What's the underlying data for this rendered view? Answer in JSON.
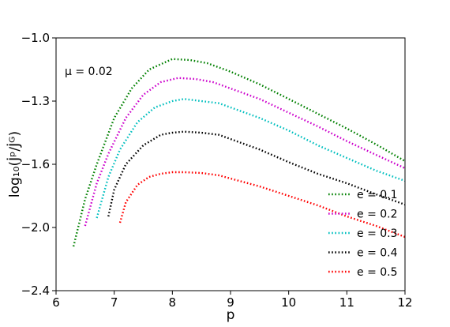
{
  "chart_data": {
    "type": "line",
    "title": "",
    "xlabel": "p",
    "ylabel": "log₁₀(J̇ᵖ/J̇ᴳ)",
    "xlim": [
      6,
      12
    ],
    "ylim": [
      -2.4,
      -1.0
    ],
    "xticks": [
      6,
      7,
      8,
      9,
      10,
      11,
      12
    ],
    "xtick_labels": [
      "6",
      "7",
      "8",
      "9",
      "10",
      "11",
      "12"
    ],
    "yticks": [
      -2.4,
      -2.0,
      -1.6,
      -1.3,
      -1.0
    ],
    "ytick_labels": [
      "−2.4",
      "−2.0",
      "−1.6",
      "−1.3",
      "−1.0"
    ],
    "annotation": "μ = 0.02",
    "legend_position": "lower-right",
    "grid": false,
    "line_style": "dotted",
    "series": [
      {
        "name": "e = 0.1",
        "color": "#008000",
        "x": [
          6.3,
          6.5,
          6.7,
          7.0,
          7.3,
          7.6,
          8.0,
          8.3,
          8.6,
          9.0,
          9.5,
          10.0,
          10.5,
          11.0,
          11.5,
          12.0
        ],
        "y": [
          -2.12,
          -1.82,
          -1.6,
          -1.38,
          -1.24,
          -1.15,
          -1.1,
          -1.105,
          -1.12,
          -1.16,
          -1.22,
          -1.29,
          -1.36,
          -1.43,
          -1.505,
          -1.585
        ]
      },
      {
        "name": "e = 0.2",
        "color": "#cc00cc",
        "x": [
          6.5,
          6.7,
          6.9,
          7.2,
          7.5,
          7.8,
          8.1,
          8.4,
          8.7,
          9.0,
          9.5,
          10.0,
          10.5,
          11.0,
          11.5,
          12.0
        ],
        "y": [
          -1.99,
          -1.72,
          -1.55,
          -1.38,
          -1.27,
          -1.21,
          -1.19,
          -1.195,
          -1.21,
          -1.24,
          -1.29,
          -1.355,
          -1.42,
          -1.49,
          -1.555,
          -1.625
        ]
      },
      {
        "name": "e = 0.3",
        "color": "#00bfbf",
        "x": [
          6.7,
          6.9,
          7.1,
          7.4,
          7.7,
          8.0,
          8.2,
          8.5,
          8.8,
          9.0,
          9.5,
          10.0,
          10.5,
          11.0,
          11.5,
          12.0
        ],
        "y": [
          -1.94,
          -1.68,
          -1.53,
          -1.4,
          -1.33,
          -1.3,
          -1.29,
          -1.3,
          -1.31,
          -1.33,
          -1.38,
          -1.44,
          -1.51,
          -1.57,
          -1.64,
          -1.705
        ]
      },
      {
        "name": "e = 0.4",
        "color": "#000000",
        "x": [
          6.9,
          7.0,
          7.2,
          7.5,
          7.8,
          8.0,
          8.2,
          8.5,
          8.8,
          9.0,
          9.5,
          10.0,
          10.5,
          11.0,
          11.5,
          12.0
        ],
        "y": [
          -1.93,
          -1.76,
          -1.6,
          -1.51,
          -1.46,
          -1.45,
          -1.445,
          -1.45,
          -1.46,
          -1.48,
          -1.53,
          -1.59,
          -1.66,
          -1.72,
          -1.79,
          -1.855
        ]
      },
      {
        "name": "e = 0.5",
        "color": "#ff0000",
        "x": [
          7.1,
          7.2,
          7.4,
          7.6,
          7.8,
          8.0,
          8.2,
          8.5,
          8.8,
          9.0,
          9.5,
          10.0,
          10.5,
          11.0,
          11.5,
          12.0
        ],
        "y": [
          -1.97,
          -1.84,
          -1.73,
          -1.68,
          -1.66,
          -1.65,
          -1.65,
          -1.655,
          -1.67,
          -1.69,
          -1.74,
          -1.8,
          -1.86,
          -1.93,
          -1.99,
          -2.06
        ]
      }
    ]
  }
}
